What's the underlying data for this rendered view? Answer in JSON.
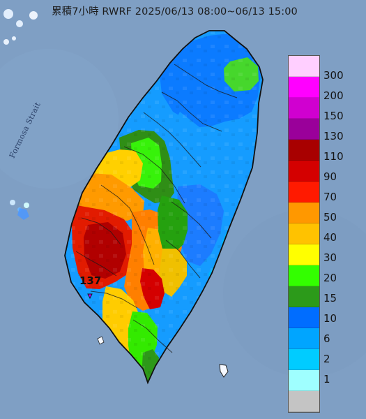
{
  "title": "累積7小時 RWRF 2025/06/13 08:00~06/13 15:00",
  "strait_label": "Formosa Strait",
  "max_station_value": "137",
  "legend": [
    {
      "label": "300",
      "color": "#ffcfff"
    },
    {
      "label": "200",
      "color": "#ff00ff"
    },
    {
      "label": "150",
      "color": "#d000d0"
    },
    {
      "label": "130",
      "color": "#9a009a"
    },
    {
      "label": "110",
      "color": "#a80000"
    },
    {
      "label": "90",
      "color": "#d40000"
    },
    {
      "label": "70",
      "color": "#ff1a00"
    },
    {
      "label": "50",
      "color": "#ff9800"
    },
    {
      "label": "40",
      "color": "#ffc200"
    },
    {
      "label": "30",
      "color": "#ffff00"
    },
    {
      "label": "20",
      "color": "#33ff00"
    },
    {
      "label": "15",
      "color": "#2c9a1a"
    },
    {
      "label": "10",
      "color": "#006dff"
    },
    {
      "label": "6",
      "color": "#00a5ff"
    },
    {
      "label": "2",
      "color": "#00ccff"
    },
    {
      "label": "1",
      "color": "#9fffff"
    },
    {
      "label": "",
      "color": "#c4c4c4"
    }
  ]
}
